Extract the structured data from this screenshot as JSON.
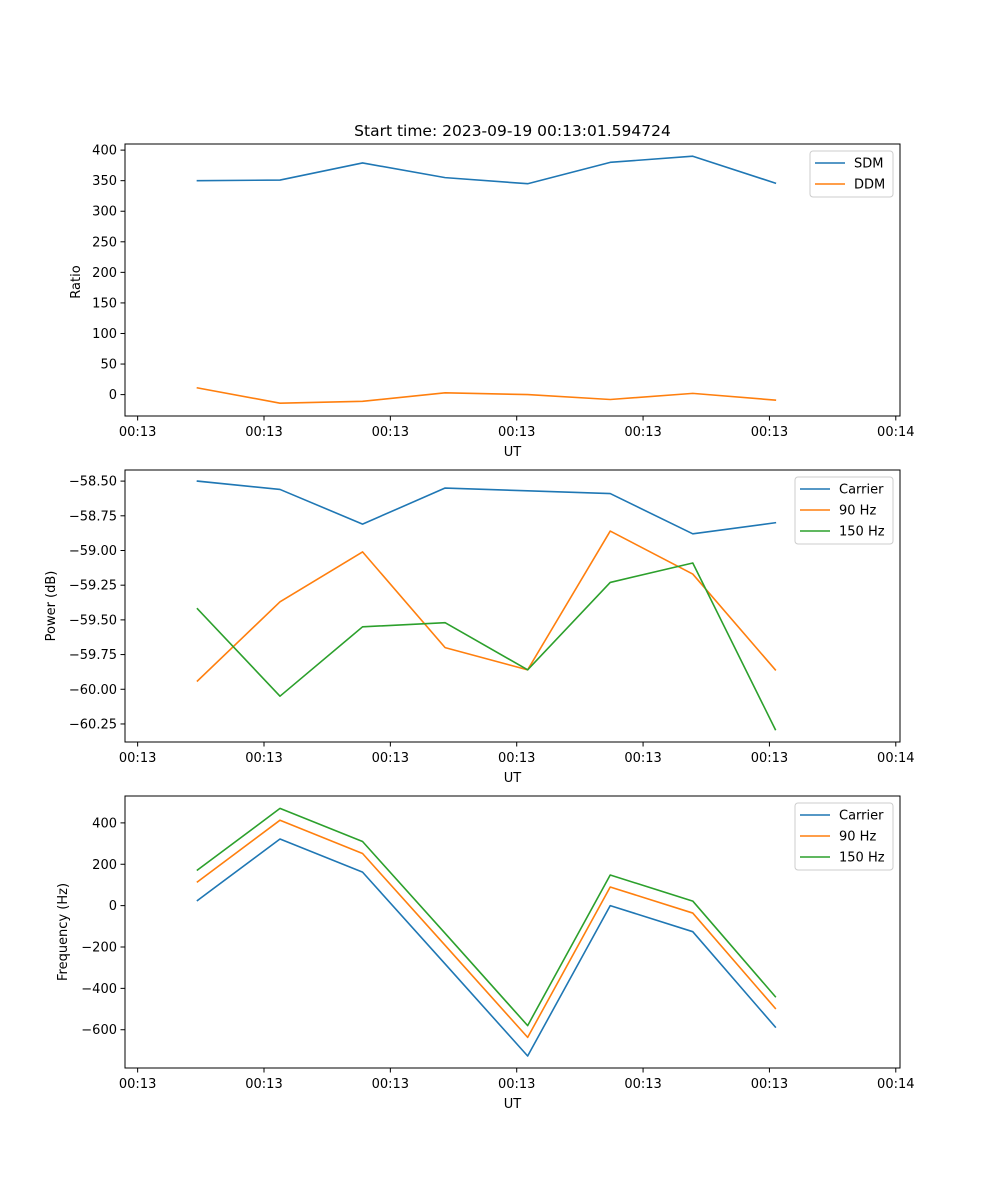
{
  "chart_data": [
    {
      "type": "line",
      "title": "Start time: 2023-09-19 00:13:01.594724",
      "xlabel": "UT",
      "ylabel": "Ratio",
      "xlim": [
        0.35,
        9.55
      ],
      "ylim": [
        -35,
        410
      ],
      "x_ticks": [
        0.5,
        2.0,
        3.5,
        5.0,
        6.5,
        8.0,
        9.5
      ],
      "x_tick_labels": [
        "00:13",
        "00:13",
        "00:13",
        "00:13",
        "00:13",
        "00:13",
        "00:14"
      ],
      "y_ticks": [
        0,
        50,
        100,
        150,
        200,
        250,
        300,
        350,
        400
      ],
      "y_tick_labels": [
        "0",
        "50",
        "100",
        "150",
        "200",
        "250",
        "300",
        "350",
        "400"
      ],
      "legend_position": "top-right",
      "x": [
        1.21,
        2.19,
        3.17,
        4.15,
        5.13,
        6.11,
        7.09,
        8.07
      ],
      "series": [
        {
          "name": "SDM",
          "color": "#1f77b4",
          "values": [
            350,
            351,
            379,
            355,
            345,
            380,
            390,
            346
          ]
        },
        {
          "name": "DDM",
          "color": "#ff7f0e",
          "values": [
            11,
            -14,
            -11,
            3,
            0,
            -8,
            2,
            -9
          ]
        }
      ]
    },
    {
      "type": "line",
      "title": "",
      "xlabel": "UT",
      "ylabel": "Power (dB)",
      "xlim": [
        0.35,
        9.55
      ],
      "ylim": [
        -60.38,
        -58.42
      ],
      "x_ticks": [
        0.5,
        2.0,
        3.5,
        5.0,
        6.5,
        8.0,
        9.5
      ],
      "x_tick_labels": [
        "00:13",
        "00:13",
        "00:13",
        "00:13",
        "00:13",
        "00:13",
        "00:14"
      ],
      "y_ticks": [
        -60.25,
        -60.0,
        -59.75,
        -59.5,
        -59.25,
        -59.0,
        -58.75,
        -58.5
      ],
      "y_tick_labels": [
        "−60.25",
        "−60.00",
        "−59.75",
        "−59.50",
        "−59.25",
        "−59.00",
        "−58.75",
        "−58.50"
      ],
      "legend_position": "top-right",
      "x": [
        1.21,
        2.19,
        3.17,
        4.15,
        5.13,
        6.11,
        7.09,
        8.07
      ],
      "series": [
        {
          "name": "Carrier",
          "color": "#1f77b4",
          "values": [
            -58.5,
            -58.56,
            -58.81,
            -58.55,
            -58.57,
            -58.59,
            -58.88,
            -58.8
          ]
        },
        {
          "name": "90 Hz",
          "color": "#ff7f0e",
          "values": [
            -59.94,
            -59.37,
            -59.01,
            -59.7,
            -59.86,
            -58.86,
            -59.17,
            -59.86
          ]
        },
        {
          "name": "150 Hz",
          "color": "#2ca02c",
          "values": [
            -59.42,
            -60.05,
            -59.55,
            -59.52,
            -59.86,
            -59.23,
            -59.09,
            -60.29
          ]
        }
      ]
    },
    {
      "type": "line",
      "title": "",
      "xlabel": "UT",
      "ylabel": "Frequency (Hz)",
      "xlim": [
        0.35,
        9.55
      ],
      "ylim": [
        -785,
        530
      ],
      "x_ticks": [
        0.5,
        2.0,
        3.5,
        5.0,
        6.5,
        8.0,
        9.5
      ],
      "x_tick_labels": [
        "00:13",
        "00:13",
        "00:13",
        "00:13",
        "00:13",
        "00:13",
        "00:14"
      ],
      "y_ticks": [
        -600,
        -400,
        -200,
        0,
        200,
        400
      ],
      "y_tick_labels": [
        "−600",
        "−400",
        "−200",
        "0",
        "200",
        "400"
      ],
      "legend_position": "top-right",
      "x": [
        1.21,
        2.19,
        3.17,
        4.15,
        5.13,
        6.11,
        7.09,
        8.07
      ],
      "series": [
        {
          "name": "Carrier",
          "color": "#1f77b4",
          "values": [
            25,
            322,
            162,
            -282,
            -727,
            0,
            -126,
            -587
          ]
        },
        {
          "name": "90 Hz",
          "color": "#ff7f0e",
          "values": [
            115,
            413,
            252,
            -192,
            -637,
            90,
            -36,
            -497
          ]
        },
        {
          "name": "150 Hz",
          "color": "#2ca02c",
          "values": [
            172,
            470,
            310,
            -134,
            -580,
            148,
            22,
            -440
          ]
        }
      ]
    }
  ]
}
